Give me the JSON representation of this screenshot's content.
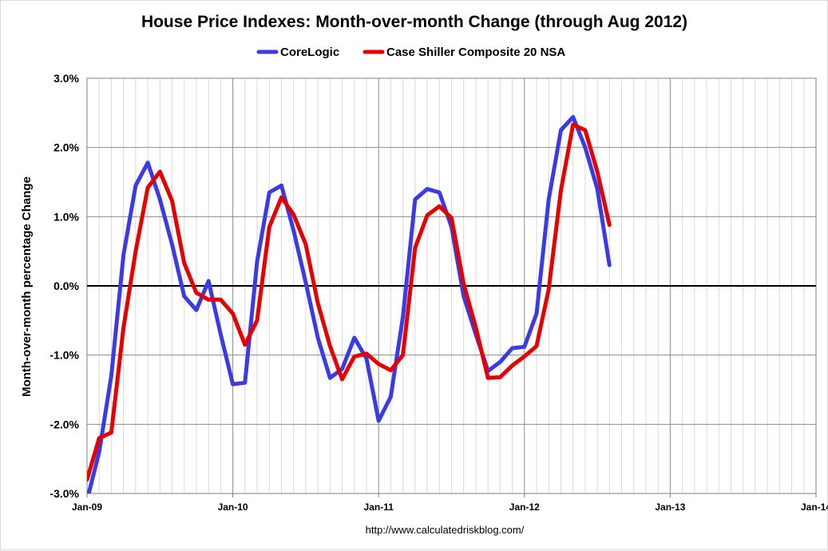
{
  "chart_data": {
    "type": "line",
    "title": "House Price Indexes: Month-over-month Change (through Aug 2012)",
    "ylabel": "Month-over-month percentage Change",
    "source": "http://www.calculatedriskblog.com/",
    "ylim": [
      -3,
      3
    ],
    "yticks": [
      {
        "value": 3,
        "label": "3.0%"
      },
      {
        "value": 2,
        "label": "2.0%"
      },
      {
        "value": 1,
        "label": "1.0%"
      },
      {
        "value": 0,
        "label": "0.0%"
      },
      {
        "value": -1,
        "label": "-1.0%"
      },
      {
        "value": -2,
        "label": "-2.0%"
      },
      {
        "value": -3,
        "label": "-3.0%"
      }
    ],
    "xticks": [
      "Jan-09",
      "Jan-10",
      "Jan-11",
      "Jan-12",
      "Jan-13",
      "Jan-14"
    ],
    "xrange": [
      "2009-01",
      "2014-01"
    ],
    "grid": true,
    "legend_position": "top",
    "series": [
      {
        "name": "CoreLogic",
        "color": "#3a3ae6",
        "x": [
          "2009-01",
          "2009-02",
          "2009-03",
          "2009-04",
          "2009-05",
          "2009-06",
          "2009-07",
          "2009-08",
          "2009-09",
          "2009-10",
          "2009-11",
          "2009-12",
          "2010-01",
          "2010-02",
          "2010-03",
          "2010-04",
          "2010-05",
          "2010-06",
          "2010-07",
          "2010-08",
          "2010-09",
          "2010-10",
          "2010-11",
          "2010-12",
          "2011-01",
          "2011-02",
          "2011-03",
          "2011-04",
          "2011-05",
          "2011-06",
          "2011-07",
          "2011-08",
          "2011-09",
          "2011-10",
          "2011-11",
          "2011-12",
          "2012-01",
          "2012-02",
          "2012-03",
          "2012-04",
          "2012-05",
          "2012-06",
          "2012-07",
          "2012-08"
        ],
        "values": [
          -3.1,
          -2.4,
          -1.3,
          0.45,
          1.45,
          1.78,
          1.25,
          0.6,
          -0.15,
          -0.35,
          0.07,
          -0.7,
          -1.42,
          -1.4,
          0.35,
          1.35,
          1.45,
          0.8,
          0.05,
          -0.75,
          -1.33,
          -1.2,
          -0.75,
          -1.05,
          -1.95,
          -1.6,
          -0.45,
          1.25,
          1.4,
          1.35,
          0.85,
          -0.15,
          -0.7,
          -1.23,
          -1.1,
          -0.9,
          -0.88,
          -0.4,
          1.25,
          2.25,
          2.44,
          2.0,
          1.4,
          0.3
        ]
      },
      {
        "name": "Case Shiller Composite 20 NSA",
        "color": "#e60000",
        "x": [
          "2009-01",
          "2009-02",
          "2009-03",
          "2009-04",
          "2009-05",
          "2009-06",
          "2009-07",
          "2009-08",
          "2009-09",
          "2009-10",
          "2009-11",
          "2009-12",
          "2010-01",
          "2010-02",
          "2010-03",
          "2010-04",
          "2010-05",
          "2010-06",
          "2010-07",
          "2010-08",
          "2010-09",
          "2010-10",
          "2010-11",
          "2010-12",
          "2011-01",
          "2011-02",
          "2011-03",
          "2011-04",
          "2011-05",
          "2011-06",
          "2011-07",
          "2011-08",
          "2011-09",
          "2011-10",
          "2011-11",
          "2011-12",
          "2012-01",
          "2012-02",
          "2012-03",
          "2012-04",
          "2012-05",
          "2012-06",
          "2012-07",
          "2012-08"
        ],
        "values": [
          -2.8,
          -2.2,
          -2.12,
          -0.6,
          0.5,
          1.42,
          1.65,
          1.23,
          0.33,
          -0.1,
          -0.2,
          -0.2,
          -0.4,
          -0.85,
          -0.5,
          0.85,
          1.28,
          1.03,
          0.6,
          -0.25,
          -0.87,
          -1.35,
          -1.02,
          -0.98,
          -1.13,
          -1.22,
          -1.0,
          0.55,
          1.02,
          1.15,
          0.98,
          0.03,
          -0.6,
          -1.33,
          -1.32,
          -1.15,
          -1.02,
          -0.87,
          -0.05,
          1.38,
          2.33,
          2.25,
          1.65,
          0.88
        ]
      }
    ]
  }
}
